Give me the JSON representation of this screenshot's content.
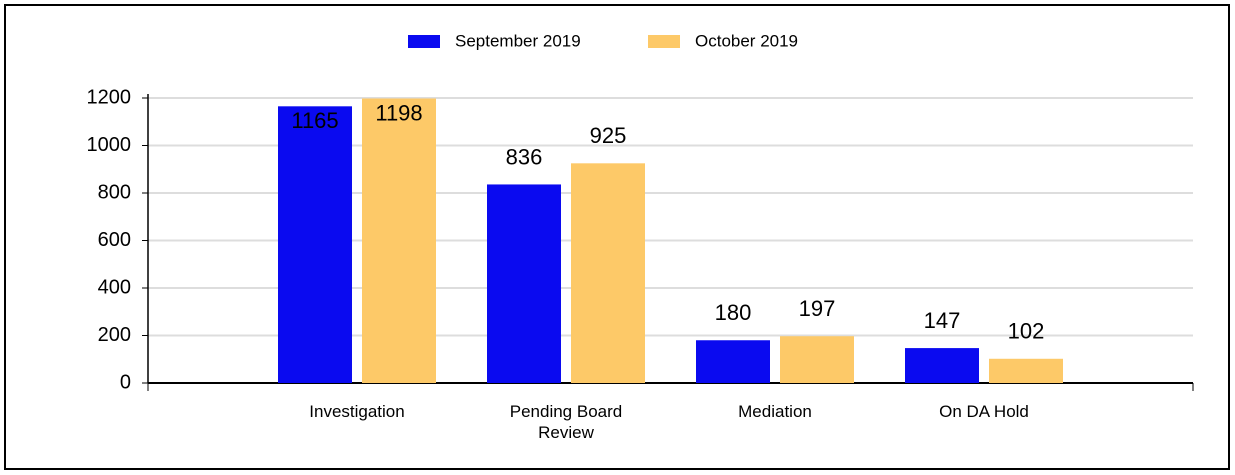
{
  "chart_data": {
    "type": "bar",
    "categories": [
      "Investigation",
      "Pending Board Review",
      "Mediation",
      "On DA Hold"
    ],
    "series": [
      {
        "name": "September 2019",
        "color": "#0a0af0",
        "values": [
          1165,
          836,
          180,
          147
        ]
      },
      {
        "name": "October 2019",
        "color": "#fdc968",
        "values": [
          1198,
          925,
          197,
          102
        ]
      }
    ],
    "ylim": [
      0,
      1200
    ],
    "yticks": [
      0,
      200,
      400,
      600,
      800,
      1000,
      1200
    ],
    "grid": true,
    "legend": "top"
  }
}
